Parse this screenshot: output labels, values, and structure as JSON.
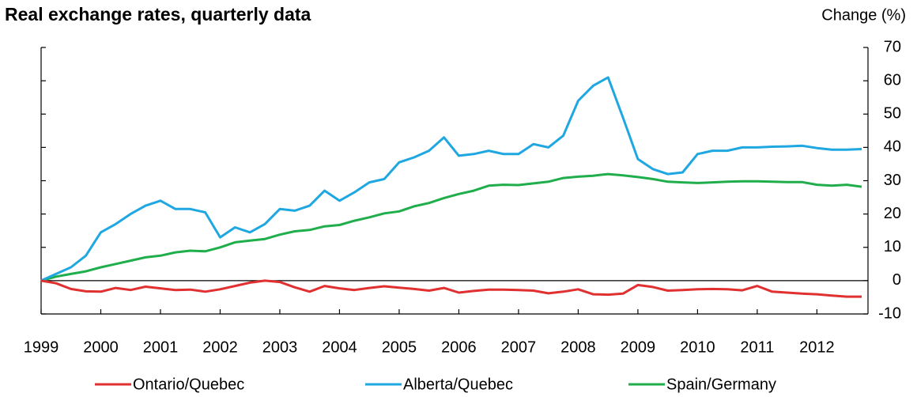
{
  "chart_data": {
    "type": "line",
    "title": "Real exchange rates, quarterly data",
    "y_axis_label": "Change (%)",
    "x": [
      1999,
      1999.25,
      1999.5,
      1999.75,
      2000,
      2000.25,
      2000.5,
      2000.75,
      2001,
      2001.25,
      2001.5,
      2001.75,
      2002,
      2002.25,
      2002.5,
      2002.75,
      2003,
      2003.25,
      2003.5,
      2003.75,
      2004,
      2004.25,
      2004.5,
      2004.75,
      2005,
      2005.25,
      2005.5,
      2005.75,
      2006,
      2006.25,
      2006.5,
      2006.75,
      2007,
      2007.25,
      2007.5,
      2007.75,
      2008,
      2008.25,
      2008.5,
      2008.75,
      2009,
      2009.25,
      2009.5,
      2009.75,
      2010,
      2010.25,
      2010.5,
      2010.75,
      2011,
      2011.25,
      2011.5,
      2011.75,
      2012,
      2012.25,
      2012.5,
      2012.75
    ],
    "series": [
      {
        "name": "Ontario/Quebec",
        "color": "#e03030",
        "values": [
          0,
          -0.8,
          -2.5,
          -3.2,
          -3.3,
          -2.2,
          -2.8,
          -1.8,
          -2.3,
          -2.8,
          -2.7,
          -3.3,
          -2.6,
          -1.6,
          -0.6,
          0,
          -0.4,
          -2,
          -3.3,
          -1.6,
          -2.3,
          -2.8,
          -2.2,
          -1.7,
          -2.1,
          -2.5,
          -3,
          -2.2,
          -3.6,
          -3.1,
          -2.7,
          -2.7,
          -2.8,
          -3,
          -3.8,
          -3.3,
          -2.6,
          -4.1,
          -4.2,
          -3.9,
          -1.3,
          -1.9,
          -3,
          -2.8,
          -2.6,
          -2.5,
          -2.6,
          -2.9,
          -1.6,
          -3.3,
          -3.6,
          -3.9,
          -4.1,
          -4.5,
          -4.8,
          -4.8
        ]
      },
      {
        "name": "Alberta/Quebec",
        "color": "#1ea7e1",
        "values": [
          0,
          2,
          4,
          7.5,
          14.5,
          17,
          20,
          22.5,
          24,
          21.5,
          21.5,
          20.5,
          13,
          16,
          14.5,
          17,
          21.5,
          21,
          22.5,
          27,
          24,
          26.5,
          29.5,
          30.5,
          35.5,
          37,
          39,
          43,
          37.5,
          38,
          39,
          38,
          38,
          41,
          40,
          43.5,
          54,
          58.5,
          61,
          49,
          36.5,
          33.5,
          32,
          32.5,
          38,
          39,
          39,
          40,
          40,
          40.2,
          40.3,
          40.5,
          39.8,
          39.3,
          39.3,
          39.5
        ]
      },
      {
        "name": "Spain/Germany",
        "color": "#1fae4b",
        "values": [
          0,
          1.2,
          2,
          2.8,
          4,
          5,
          6,
          7,
          7.5,
          8.5,
          9,
          8.8,
          10,
          11.5,
          12,
          12.5,
          13.8,
          14.8,
          15.2,
          16.3,
          16.7,
          18,
          19,
          20.2,
          20.8,
          22.3,
          23.3,
          24.8,
          26,
          27,
          28.5,
          28.8,
          28.7,
          29.2,
          29.7,
          30.8,
          31.2,
          31.5,
          32,
          31.6,
          31.1,
          30.5,
          29.7,
          29.5,
          29.3,
          29.5,
          29.7,
          29.8,
          29.8,
          29.7,
          29.6,
          29.6,
          28.8,
          28.5,
          28.8,
          28.2
        ]
      }
    ],
    "xlim": [
      1999,
      2012.75
    ],
    "xticks": [
      1999,
      2000,
      2001,
      2002,
      2003,
      2004,
      2005,
      2006,
      2007,
      2008,
      2009,
      2010,
      2011,
      2012
    ],
    "ylim": [
      -10,
      70
    ],
    "yticks": [
      -10,
      0,
      10,
      20,
      30,
      40,
      50,
      60,
      70
    ],
    "legend": "bottom"
  }
}
